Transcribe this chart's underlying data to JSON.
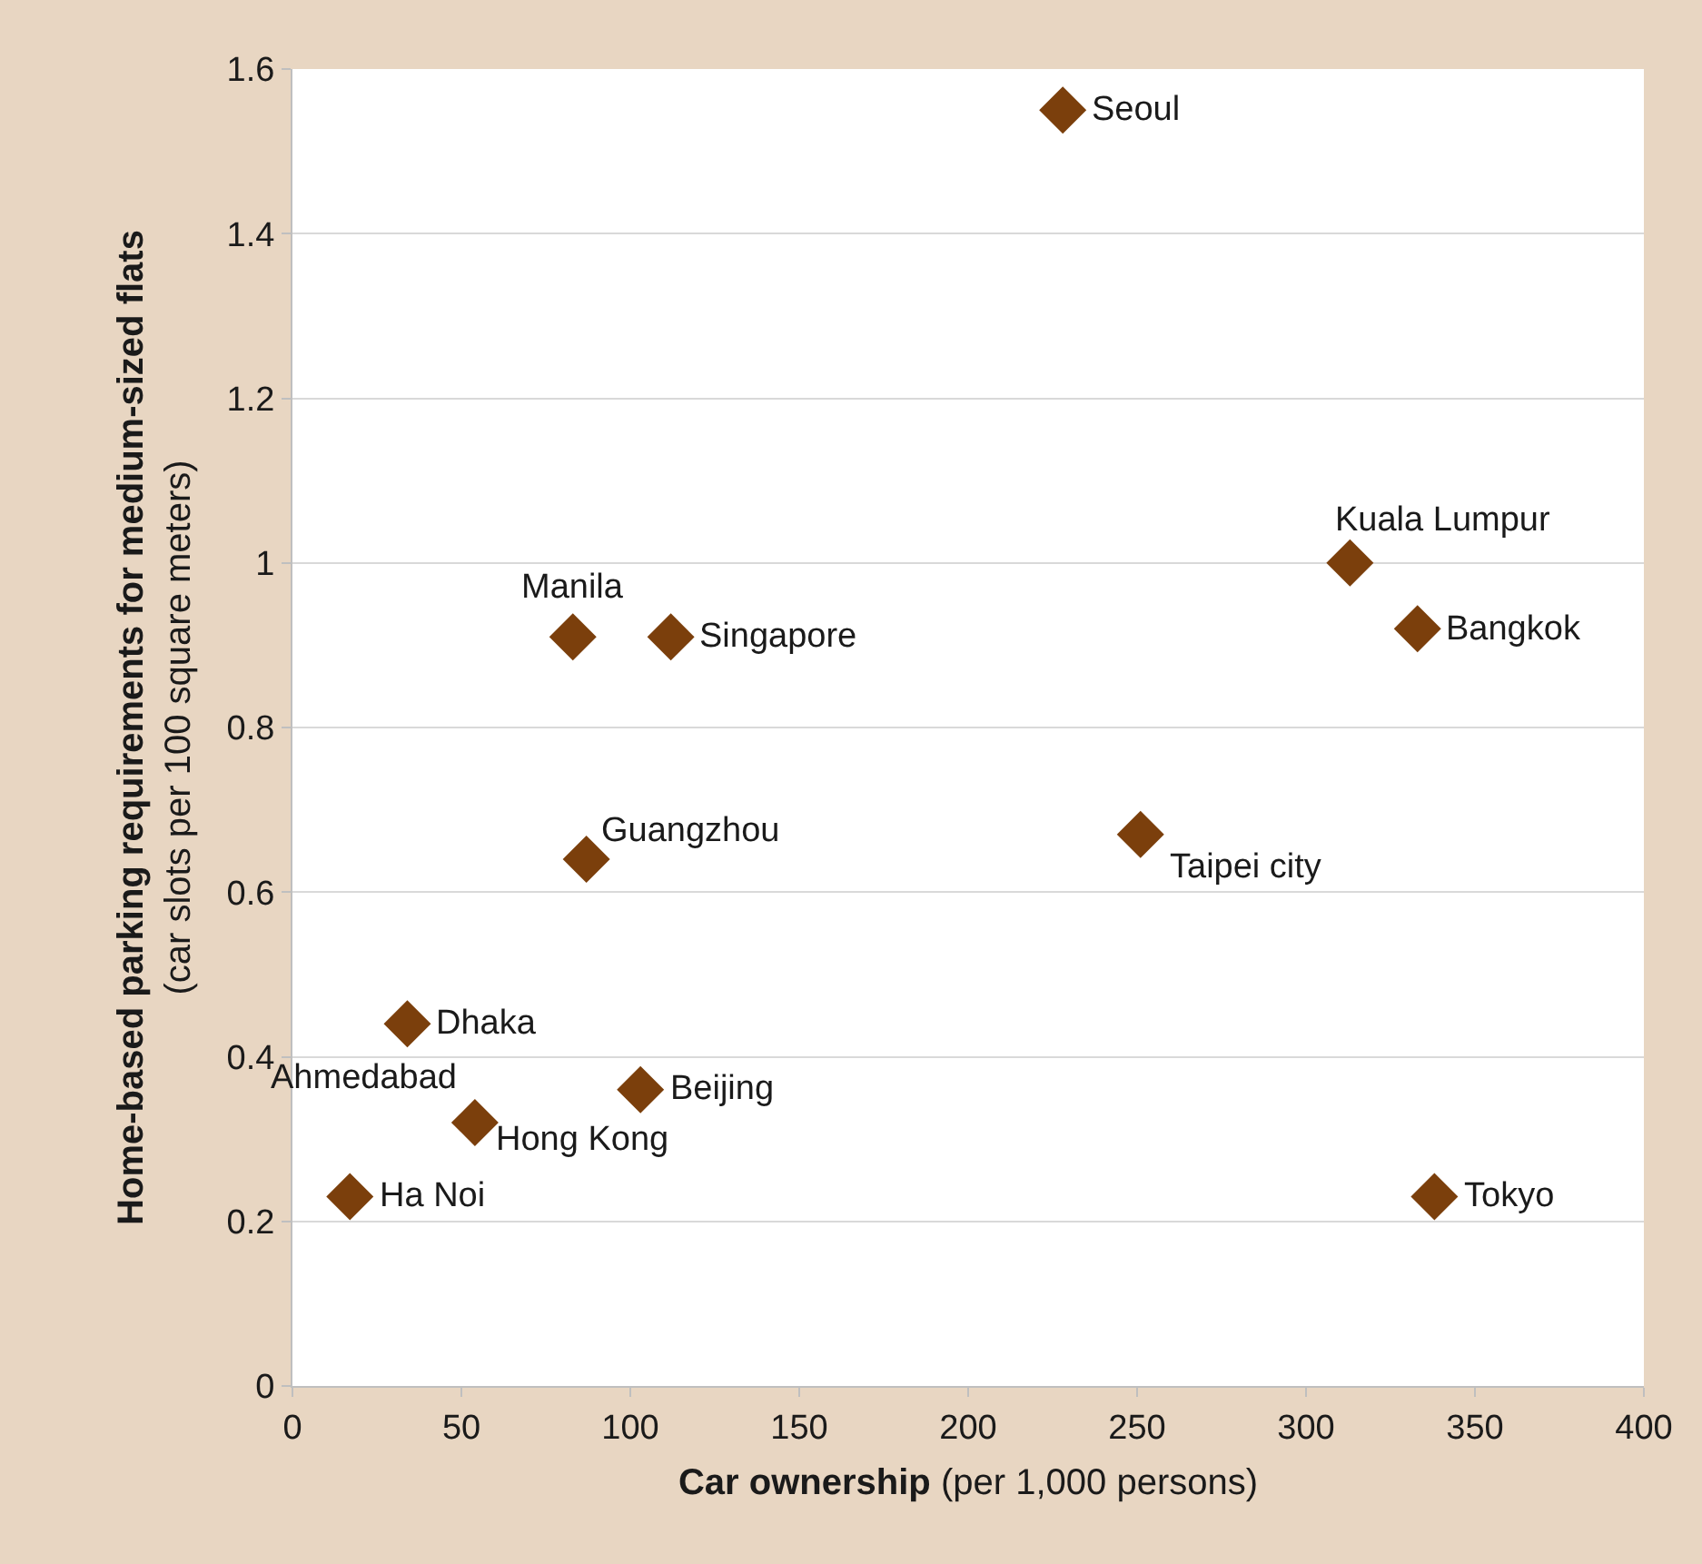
{
  "chart_data": {
    "type": "scatter",
    "xlabel": "Car ownership (per 1,000 persons)",
    "ylabel": "Home-based parking requirements for medium-sized flats (car slots per 100 square meters)",
    "x": [
      228,
      313,
      333,
      83,
      112,
      87,
      251,
      34,
      103,
      54,
      17,
      338
    ],
    "series": [
      {
        "color": "#7b3f0c",
        "values": [
          1.55,
          1.0,
          0.92,
          0.91,
          0.91,
          0.64,
          0.67,
          0.44,
          0.36,
          0.32,
          0.23,
          0.23
        ]
      }
    ],
    "annotations": [
      {
        "text": "Seoul",
        "x": 228,
        "y": 1.55
      },
      {
        "text": "Kuala Lumpur",
        "x": 313,
        "y": 1.0
      },
      {
        "text": "Bangkok",
        "x": 333,
        "y": 0.92
      },
      {
        "text": "Manila",
        "x": 83,
        "y": 0.91
      },
      {
        "text": "Singapore",
        "x": 112,
        "y": 0.91
      },
      {
        "text": "Guangzhou",
        "x": 87,
        "y": 0.64
      },
      {
        "text": "Taipei city",
        "x": 251,
        "y": 0.67
      },
      {
        "text": "Dhaka",
        "x": 34,
        "y": 0.44
      },
      {
        "text": "Beijing",
        "x": 103,
        "y": 0.36
      },
      {
        "text": "Ahmedabad",
        "x": 54,
        "y": 0.32
      },
      {
        "text": "Hong Kong",
        "x": 54,
        "y": 0.32
      },
      {
        "text": "Ha Noi",
        "x": 17,
        "y": 0.23
      },
      {
        "text": "Tokyo",
        "x": 338,
        "y": 0.23
      }
    ],
    "xlim": [
      0,
      400
    ],
    "xticks": [
      0,
      50,
      100,
      150,
      200,
      250,
      300,
      350,
      400
    ],
    "ylim": [
      0,
      1.6
    ],
    "yticks": [
      0,
      0.2,
      0.4,
      0.6,
      0.8,
      1,
      1.2,
      1.4,
      1.6
    ],
    "grid": "y",
    "marker": "diamond",
    "legend": false
  }
}
